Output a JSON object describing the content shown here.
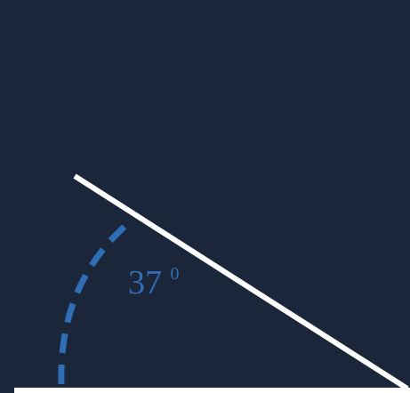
{
  "diagram": {
    "angle_value": "37",
    "angle_unit": "0",
    "colors": {
      "background": "#1b263b",
      "lines": "#ffffff",
      "arc": "#2f6db5",
      "label": "#2f6db5"
    }
  }
}
